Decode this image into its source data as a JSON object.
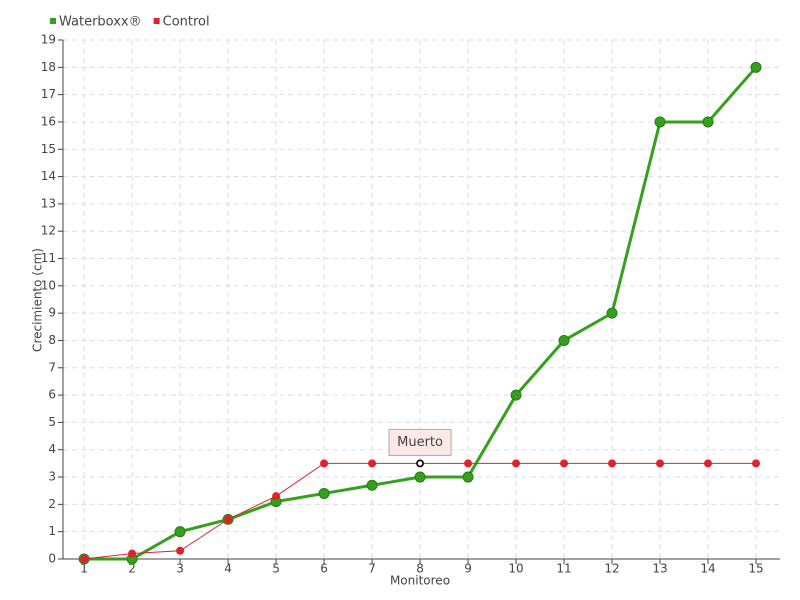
{
  "chart_data": {
    "type": "line",
    "x_label": "Monitoreo",
    "y_label": "Crecimiento (cm)",
    "x": [
      1,
      2,
      3,
      4,
      5,
      6,
      7,
      8,
      9,
      10,
      11,
      12,
      13,
      14,
      15
    ],
    "series": [
      {
        "name": "Waterboxx®",
        "color": "#34a01e",
        "values": [
          0,
          0,
          1,
          1.45,
          2.1,
          2.4,
          2.7,
          3,
          3,
          6,
          8,
          9,
          16,
          16,
          18
        ]
      },
      {
        "name": "Control",
        "color": "#e3202c",
        "values": [
          0,
          0.2,
          0.3,
          1.45,
          2.3,
          3.5,
          3.5,
          3.5,
          3.5,
          3.5,
          3.5,
          3.5,
          3.5,
          3.5,
          3.5
        ]
      }
    ],
    "annotations": [
      {
        "text": "Muerto",
        "x": 8,
        "y": 3.5
      }
    ],
    "xlim": [
      0.56,
      15.5
    ],
    "ylim": [
      0,
      19
    ],
    "xticks": [
      1,
      2,
      3,
      4,
      5,
      6,
      7,
      8,
      9,
      10,
      11,
      12,
      13,
      14,
      15
    ],
    "yticks": [
      0,
      1,
      2,
      3,
      4,
      5,
      6,
      7,
      8,
      9,
      10,
      11,
      12,
      13,
      14,
      15,
      16,
      17,
      18,
      19
    ],
    "grid": true,
    "legend": "top-left"
  }
}
